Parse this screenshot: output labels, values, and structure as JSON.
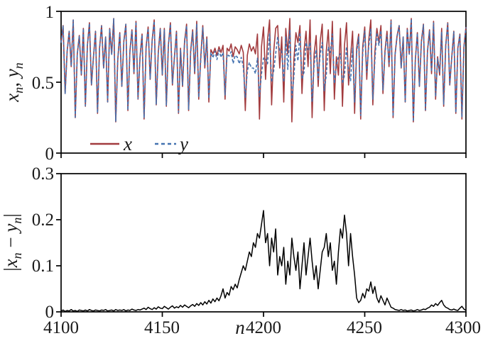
{
  "colors": {
    "x_series": "#A23B3E",
    "y_series": "#4472B0",
    "diff_series": "#000000",
    "frame": "#000000",
    "background": "#ffffff"
  },
  "labels": {
    "top_yticks": [
      "1",
      "0.5",
      "0"
    ],
    "bottom_yticks": [
      "0.3",
      "0.2",
      "0.1",
      "0"
    ],
    "xticks": [
      "4100",
      "4150",
      "4200",
      "4250",
      "4300"
    ],
    "xlabel": "n",
    "top_ylabel": {
      "x_var": "x",
      "x_sub": "n",
      "comma": ", ",
      "y_var": "y",
      "y_sub": "n"
    },
    "bottom_ylabel": {
      "open_bar": "|",
      "x_var": "x",
      "x_sub": "n",
      "minus": " − ",
      "y_var": "y",
      "y_sub": "n",
      "close_bar": "|"
    },
    "legend": {
      "x_label": "x",
      "y_label": "y"
    }
  },
  "chart_data": {
    "type": "line",
    "x_label": "n",
    "x_start": 4100,
    "x_end": 4300,
    "x_step": 1,
    "x_ticks": [
      4100,
      4150,
      4200,
      4250,
      4300
    ],
    "panels": [
      {
        "ylabel": "x_n, y_n",
        "ylim": [
          0,
          1
        ],
        "yticks": [
          0,
          0.5,
          1
        ],
        "legend_position": "lower-left-inside",
        "description": "Two synchronized chaotic time series that desynchronize in a burst around n=4180-4260",
        "series": [
          {
            "name": "x",
            "style": "solid",
            "color": "#A23B3E",
            "values": [
              0.78,
              0.9,
              0.42,
              0.72,
              0.86,
              0.61,
              0.94,
              0.25,
              0.7,
              0.83,
              0.55,
              0.88,
              0.33,
              0.76,
              0.92,
              0.48,
              0.68,
              0.86,
              0.28,
              0.74,
              0.9,
              0.6,
              0.82,
              0.36,
              0.88,
              0.7,
              0.95,
              0.22,
              0.66,
              0.85,
              0.47,
              0.79,
              0.91,
              0.3,
              0.72,
              0.87,
              0.56,
              0.93,
              0.38,
              0.68,
              0.84,
              0.24,
              0.75,
              0.89,
              0.52,
              0.8,
              0.94,
              0.34,
              0.71,
              0.88,
              0.55,
              0.88,
              0.33,
              0.76,
              0.92,
              0.48,
              0.68,
              0.86,
              0.28,
              0.74,
              0.47,
              0.79,
              0.91,
              0.3,
              0.72,
              0.87,
              0.56,
              0.93,
              0.38,
              0.68,
              0.9,
              0.6,
              0.82,
              0.36,
              0.73,
              0.7,
              0.74,
              0.69,
              0.75,
              0.71,
              0.76,
              0.38,
              0.74,
              0.72,
              0.77,
              0.68,
              0.75,
              0.73,
              0.7,
              0.76,
              0.71,
              0.3,
              0.69,
              0.77,
              0.72,
              0.75,
              0.7,
              0.84,
              0.24,
              0.75,
              0.89,
              0.52,
              0.8,
              0.94,
              0.34,
              0.71,
              0.88,
              0.9,
              0.6,
              0.82,
              0.36,
              0.88,
              0.7,
              0.95,
              0.22,
              0.66,
              0.85,
              0.78,
              0.9,
              0.42,
              0.72,
              0.86,
              0.61,
              0.94,
              0.25,
              0.7,
              0.83,
              0.47,
              0.79,
              0.91,
              0.3,
              0.72,
              0.87,
              0.56,
              0.93,
              0.38,
              0.68,
              0.55,
              0.88,
              0.33,
              0.76,
              0.92,
              0.48,
              0.68,
              0.86,
              0.28,
              0.74,
              0.84,
              0.24,
              0.75,
              0.89,
              0.52,
              0.8,
              0.94,
              0.34,
              0.71,
              0.88,
              0.78,
              0.9,
              0.42,
              0.72,
              0.86,
              0.61,
              0.94,
              0.25,
              0.7,
              0.83,
              0.9,
              0.6,
              0.82,
              0.36,
              0.88,
              0.7,
              0.95,
              0.22,
              0.66,
              0.85,
              0.47,
              0.79,
              0.91,
              0.3,
              0.72,
              0.87,
              0.56,
              0.93,
              0.38,
              0.68,
              0.55,
              0.88,
              0.33,
              0.76,
              0.92,
              0.48,
              0.68,
              0.86,
              0.28,
              0.74,
              0.84,
              0.24,
              0.75,
              0.89
            ]
          },
          {
            "name": "y",
            "style": "dashed",
            "color": "#4472B0",
            "derived": "y_n = x_n - diff_n when x_n > 0.62, else x_n + diff_n (visually indistinguishable from x except during the desynchronization burst; |x_n - y_n| equals the bottom panel series)"
          }
        ]
      },
      {
        "ylabel": "|x_n - y_n|",
        "ylim": [
          0,
          0.3
        ],
        "yticks": [
          0,
          0.1,
          0.2,
          0.3
        ],
        "description": "Absolute difference |x-y|: near zero outside n~4180-4260, bursting to a 0.22 peak at n=4200 and 0.21 at n=4240",
        "series": [
          {
            "name": "|x-y|",
            "style": "solid",
            "color": "#000000",
            "values": [
              0.002,
              0.004,
              0.001,
              0.003,
              0.002,
              0.005,
              0.002,
              0.003,
              0.001,
              0.004,
              0.003,
              0.002,
              0.004,
              0.002,
              0.005,
              0.003,
              0.002,
              0.004,
              0.003,
              0.002,
              0.004,
              0.003,
              0.005,
              0.002,
              0.003,
              0.004,
              0.002,
              0.005,
              0.003,
              0.004,
              0.003,
              0.005,
              0.002,
              0.004,
              0.003,
              0.006,
              0.004,
              0.003,
              0.005,
              0.004,
              0.006,
              0.008,
              0.005,
              0.01,
              0.007,
              0.005,
              0.009,
              0.006,
              0.011,
              0.008,
              0.007,
              0.012,
              0.009,
              0.006,
              0.01,
              0.013,
              0.008,
              0.011,
              0.009,
              0.014,
              0.01,
              0.015,
              0.012,
              0.009,
              0.013,
              0.016,
              0.012,
              0.018,
              0.014,
              0.02,
              0.015,
              0.022,
              0.017,
              0.025,
              0.019,
              0.028,
              0.022,
              0.03,
              0.024,
              0.035,
              0.05,
              0.03,
              0.042,
              0.036,
              0.055,
              0.048,
              0.06,
              0.052,
              0.07,
              0.085,
              0.1,
              0.09,
              0.11,
              0.13,
              0.12,
              0.15,
              0.14,
              0.17,
              0.16,
              0.19,
              0.22,
              0.15,
              0.17,
              0.1,
              0.16,
              0.13,
              0.18,
              0.08,
              0.12,
              0.1,
              0.14,
              0.06,
              0.11,
              0.08,
              0.16,
              0.12,
              0.09,
              0.13,
              0.05,
              0.1,
              0.15,
              0.08,
              0.12,
              0.16,
              0.11,
              0.07,
              0.1,
              0.05,
              0.09,
              0.13,
              0.14,
              0.17,
              0.12,
              0.15,
              0.09,
              0.11,
              0.06,
              0.13,
              0.18,
              0.16,
              0.21,
              0.17,
              0.1,
              0.17,
              0.12,
              0.08,
              0.03,
              0.02,
              0.025,
              0.04,
              0.03,
              0.05,
              0.045,
              0.065,
              0.04,
              0.055,
              0.03,
              0.02,
              0.035,
              0.025,
              0.015,
              0.03,
              0.02,
              0.01,
              0.008,
              0.005,
              0.004,
              0.003,
              0.005,
              0.003,
              0.004,
              0.002,
              0.003,
              0.004,
              0.002,
              0.003,
              0.005,
              0.003,
              0.004,
              0.006,
              0.005,
              0.008,
              0.01,
              0.015,
              0.012,
              0.018,
              0.014,
              0.02,
              0.025,
              0.015,
              0.01,
              0.008,
              0.005,
              0.004,
              0.006,
              0.004,
              0.003,
              0.008,
              0.012,
              0.006,
              0.003
            ]
          }
        ]
      }
    ]
  }
}
